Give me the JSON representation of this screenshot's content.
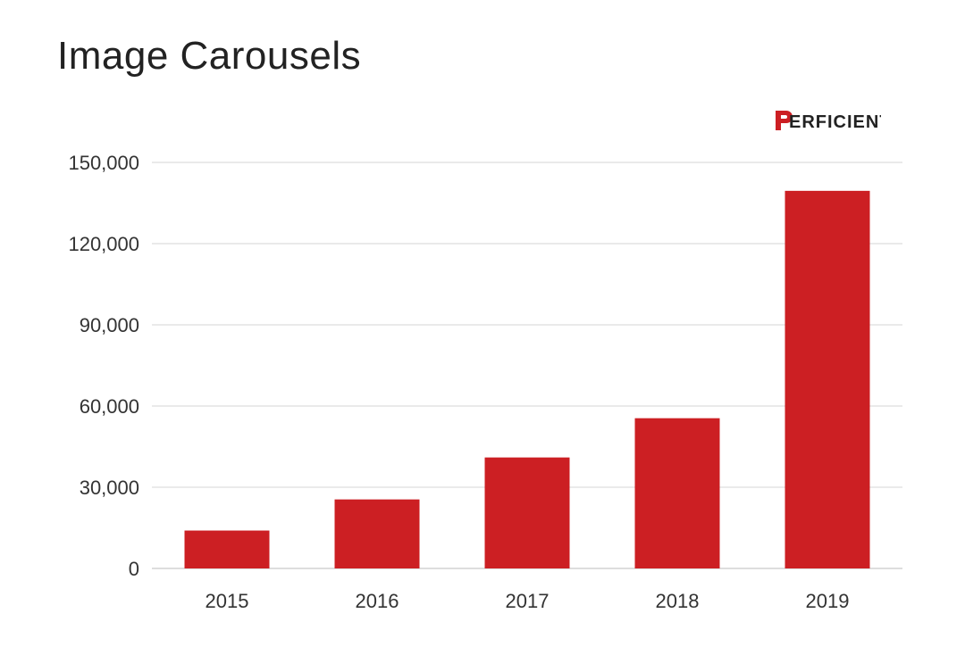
{
  "chart_data": {
    "type": "bar",
    "title": "Image Carousels",
    "categories": [
      "2015",
      "2016",
      "2017",
      "2018",
      "2019"
    ],
    "values": [
      14000,
      25500,
      41000,
      55500,
      139500
    ],
    "ylim": [
      0,
      150000
    ],
    "yticks": [
      "0",
      "30,000",
      "60,000",
      "90,000",
      "120,000",
      "150,000"
    ],
    "ytick_values": [
      0,
      30000,
      60000,
      90000,
      120000,
      150000
    ],
    "xlabel": "",
    "ylabel": "",
    "grid": true,
    "bar_color": "#cc1f23"
  },
  "brand": {
    "name": "PERFICIENT",
    "mark_letter": "P",
    "rest": "ERFICIENT",
    "color": "#cc1f23"
  }
}
